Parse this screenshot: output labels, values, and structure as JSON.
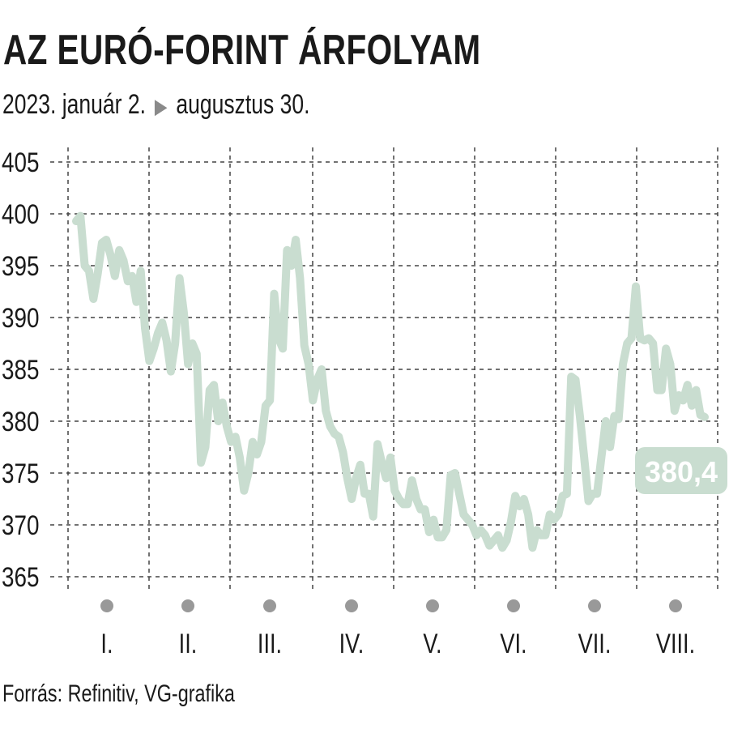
{
  "header": {
    "title": "AZ EURÓ-FORINT ÁRFOLYAM",
    "subtitle_start": "2023. január 2.",
    "subtitle_end": "augusztus 30."
  },
  "footer": {
    "source": "Forrás: Refinitiv, VG-grafika"
  },
  "colors": {
    "line": "#c9ddd0",
    "label_bg": "#c9ddd0",
    "grid": "#444444",
    "dot": "#999999"
  },
  "chart_data": {
    "type": "line",
    "ylim": [
      365,
      405
    ],
    "y_ticks": [
      "405",
      "400",
      "395",
      "390",
      "385",
      "380",
      "375",
      "370",
      "365"
    ],
    "months": [
      "I.",
      "II.",
      "III.",
      "IV.",
      "V.",
      "VI.",
      "VII.",
      "VIII."
    ],
    "grid": true,
    "end_label": "380,4",
    "series": [
      {
        "values": [
          399.3,
          399.8,
          395.0,
          394.5,
          391.8,
          394.2,
          397.2,
          397.5,
          396.0,
          394.0,
          396.5,
          395.5,
          393.5,
          394.0,
          391.5,
          394.5,
          389.0,
          385.8,
          387.0,
          388.5,
          389.5,
          387.8,
          384.8,
          387.5,
          393.8,
          390.5,
          385.5,
          387.5,
          386.5,
          376.0,
          377.5,
          383.0,
          383.5,
          380.0,
          381.8,
          379.5,
          378.0,
          378.5,
          376.5,
          373.3,
          375.0,
          378.0,
          376.8,
          378.0,
          381.5,
          382.0,
          392.3,
          388.0,
          387.0,
          396.5,
          395.0,
          397.5,
          393.8,
          387.3,
          385.5,
          382.0,
          384.0,
          385.0,
          381.0,
          379.5,
          378.8,
          378.5,
          377.0,
          374.5,
          372.5,
          374.5,
          375.8,
          373.0,
          373.0,
          370.8,
          377.8,
          376.0,
          374.5,
          376.5,
          373.3,
          372.5,
          372.0,
          372.0,
          374.3,
          372.5,
          371.5,
          371.5,
          369.3,
          370.5,
          368.8,
          368.8,
          369.5,
          374.8,
          375.0,
          373.0,
          371.0,
          370.5,
          370.0,
          369.0,
          369.5,
          369.0,
          368.0,
          368.5,
          369.0,
          367.8,
          368.5,
          370.3,
          372.8,
          371.8,
          372.5,
          371.0,
          367.8,
          369.5,
          369.0,
          369.0,
          371.0,
          370.5,
          371.0,
          372.8,
          373.0,
          384.3,
          384.0,
          380.5,
          376.5,
          372.3,
          373.0,
          373.0,
          376.5,
          380.0,
          377.5,
          380.5,
          380.2,
          385.5,
          387.5,
          388.0,
          393.0,
          388.0,
          387.8,
          388.0,
          387.5,
          383.0,
          383.0,
          387.0,
          385.5,
          381.0,
          382.5,
          382.0,
          383.5,
          381.5,
          383.0,
          380.6,
          380.4
        ]
      }
    ]
  }
}
